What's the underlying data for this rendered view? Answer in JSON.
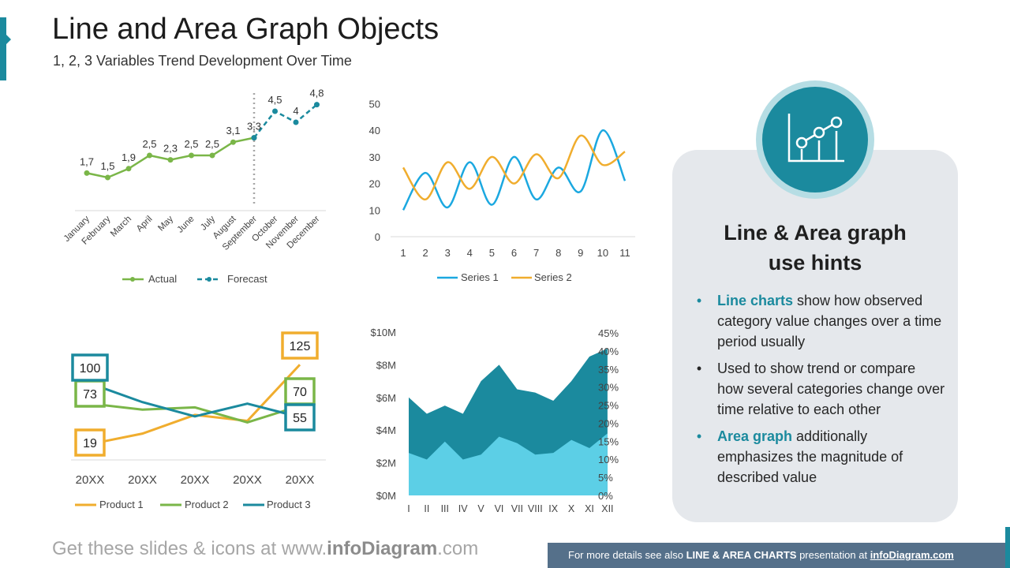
{
  "header": {
    "title": "Line and Area Graph Objects",
    "subtitle": "1, 2, 3 Variables Trend Development Over Time"
  },
  "hints": {
    "title_line1": "Line & Area graph",
    "title_line2": "use hints",
    "items": [
      {
        "highlight": "Line charts",
        "text": " show how observed category value changes over a time period usually",
        "bullet": "•"
      },
      {
        "highlight": "",
        "text": "Used to show trend or compare how several categories change over time relative to each other",
        "bullet": "•"
      },
      {
        "highlight": "Area graph",
        "text": " additionally emphasizes the magnitude of described value",
        "bullet": "•"
      }
    ],
    "icon": "line-chart-icon"
  },
  "footer": {
    "left_prefix": "Get these slides & icons at www.",
    "left_brand": "infoDiagram",
    "left_suffix": ".com",
    "right_prefix": "For more details see also ",
    "right_bold": "LINE & AREA CHARTS",
    "right_middle": " presentation at ",
    "right_link": "infoDiagram.com"
  },
  "colors": {
    "accent": "#1b8a9e",
    "green": "#7ab648",
    "orange": "#f0ad2e",
    "blue": "#1ba8e0",
    "darkteal": "#1b8a9e",
    "lightblue": "#5ccfe6",
    "card": "#e5e8ec",
    "footer_bar": "#55708a"
  },
  "chart_data": [
    {
      "type": "line",
      "categories": [
        "January",
        "February",
        "March",
        "April",
        "May",
        "June",
        "July",
        "August",
        "September",
        "October",
        "November",
        "December"
      ],
      "series": [
        {
          "name": "Actual",
          "values": [
            1.7,
            1.5,
            1.9,
            2.5,
            2.3,
            2.5,
            2.5,
            3.1,
            3.3,
            null,
            null,
            null
          ],
          "labels": [
            "1,7",
            "1,5",
            "1,9",
            "2,5",
            "2,3",
            "2,5",
            "2,5",
            "3,1",
            "3,3",
            "",
            "",
            ""
          ]
        },
        {
          "name": "Forecast",
          "values": [
            null,
            null,
            null,
            null,
            null,
            null,
            null,
            null,
            3.3,
            4.5,
            4.0,
            4.8
          ],
          "labels": [
            "",
            "",
            "",
            "",
            "",
            "",
            "",
            "",
            "",
            "4,5",
            "4",
            "4,8"
          ]
        }
      ],
      "ylim": [
        0,
        5.5
      ],
      "divider_at": "September"
    },
    {
      "type": "line",
      "x": [
        1,
        2,
        3,
        4,
        5,
        6,
        7,
        8,
        9,
        10,
        11
      ],
      "series": [
        {
          "name": "Series 1",
          "values": [
            10,
            24,
            11,
            28,
            12,
            30,
            14,
            26,
            17,
            40,
            21
          ]
        },
        {
          "name": "Series 2",
          "values": [
            26,
            14,
            28,
            18,
            30,
            20,
            31,
            22,
            38,
            27,
            32
          ]
        }
      ],
      "ylim": [
        0,
        50
      ],
      "yticks": [
        0,
        10,
        20,
        30,
        40,
        50
      ]
    },
    {
      "type": "line",
      "categories": [
        "20XX",
        "20XX",
        "20XX",
        "20XX",
        "20XX"
      ],
      "series": [
        {
          "name": "Product 1",
          "values": [
            19,
            33,
            58,
            50,
            125
          ]
        },
        {
          "name": "Product 2",
          "values": [
            73,
            65,
            68,
            48,
            70
          ]
        },
        {
          "name": "Product 3",
          "values": [
            100,
            75,
            56,
            73,
            55
          ]
        }
      ],
      "callouts": {
        "Product 1": {
          "first": "19",
          "last": "125"
        },
        "Product 2": {
          "first": "73",
          "last": "70"
        },
        "Product 3": {
          "first": "100",
          "last": "55"
        }
      }
    },
    {
      "type": "area",
      "categories": [
        "I",
        "II",
        "III",
        "IV",
        "V",
        "VI",
        "VII",
        "VIII",
        "IX",
        "X",
        "XI",
        "XII"
      ],
      "series": [
        {
          "name": "",
          "axis": "left",
          "values": [
            6.0,
            5.0,
            5.5,
            5.0,
            7.0,
            8.0,
            6.5,
            6.3,
            5.8,
            7.0,
            8.5,
            9.0
          ]
        },
        {
          "name": "",
          "axis": "left",
          "values": [
            2.6,
            2.2,
            3.3,
            2.2,
            2.5,
            3.6,
            3.2,
            2.5,
            2.6,
            3.4,
            2.9,
            3.8
          ]
        }
      ],
      "yticks_left": [
        "$0M",
        "$2M",
        "$4M",
        "$6M",
        "$8M",
        "$10M"
      ],
      "ylim_left": [
        0,
        10
      ],
      "yticks_right": [
        "0%",
        "5%",
        "10%",
        "15%",
        "20%",
        "25%",
        "30%",
        "35%",
        "40%",
        "45%"
      ],
      "ylim_right": [
        0,
        45
      ]
    }
  ]
}
